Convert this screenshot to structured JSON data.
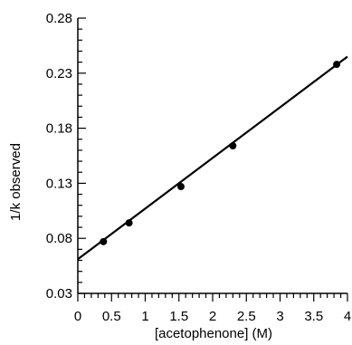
{
  "chart_data": {
    "type": "scatter",
    "xlabel": "[acetophenone] (M)",
    "ylabel": "1/k observed",
    "xlim": [
      0,
      4
    ],
    "ylim": [
      0.03,
      0.28
    ],
    "grid": false,
    "x_ticks": [
      "0",
      "0.5",
      "1",
      "1.5",
      "2",
      "2.5",
      "3",
      "3.5",
      "4"
    ],
    "y_ticks": [
      "0.03",
      "0.08",
      "0.13",
      "0.18",
      "0.23",
      "0.28"
    ],
    "series": [
      {
        "points": [
          {
            "x": 0.38,
            "y": 0.077
          },
          {
            "x": 0.76,
            "y": 0.094
          },
          {
            "x": 1.53,
            "y": 0.127
          },
          {
            "x": 2.3,
            "y": 0.164
          },
          {
            "x": 3.84,
            "y": 0.238
          }
        ]
      }
    ],
    "fit_line": {
      "x": [
        0,
        4
      ],
      "y": [
        0.061,
        0.245
      ]
    },
    "colors": {
      "ink": "#000000",
      "background": "#ffffff"
    }
  }
}
